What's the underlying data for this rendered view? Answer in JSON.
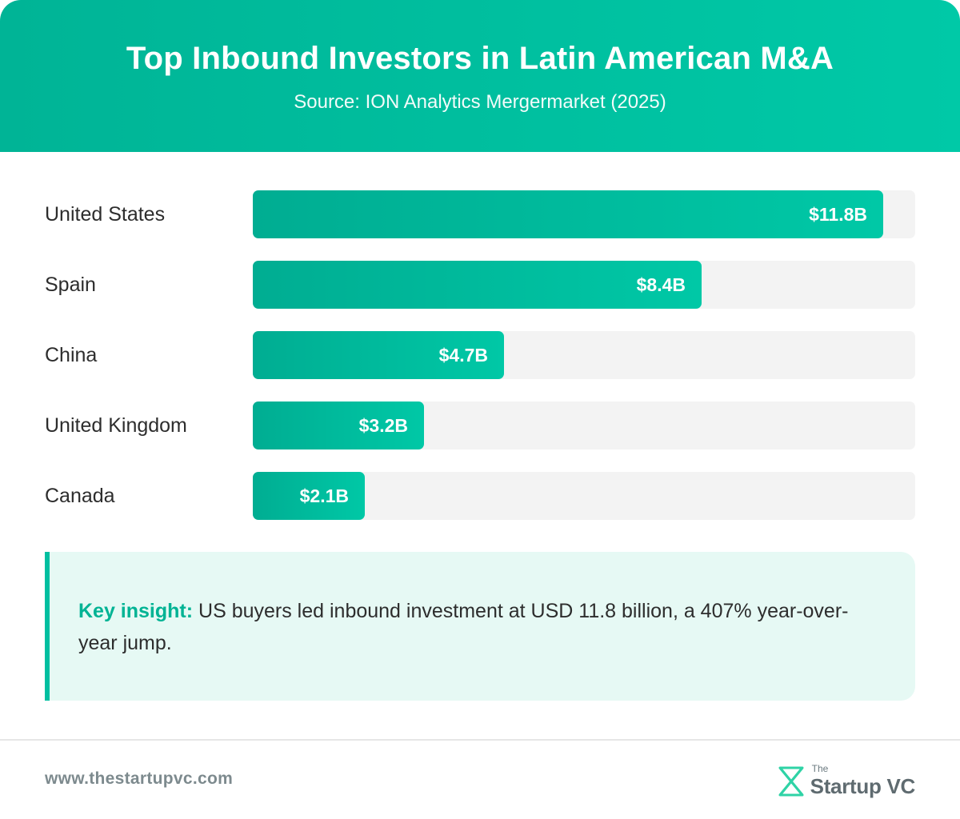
{
  "header": {
    "title": "Top Inbound Investors in Latin American M&A",
    "subtitle": "Source: ION Analytics Mergermarket (2025)"
  },
  "chart_data": {
    "type": "bar",
    "orientation": "horizontal",
    "title": "Top Inbound Investors in Latin American M&A",
    "subtitle": "Source: ION Analytics Mergermarket (2025)",
    "categories": [
      "United States",
      "Spain",
      "China",
      "United Kingdom",
      "Canada"
    ],
    "values": [
      11.8,
      8.4,
      4.7,
      3.2,
      2.1
    ],
    "value_labels": [
      "$11.8B",
      "$8.4B",
      "$4.7B",
      "$3.2B",
      "$2.1B"
    ],
    "unit": "USD billions",
    "xlim": [
      0,
      12.4
    ],
    "grid": false,
    "bar_color": "#00bfa0",
    "track_color": "#f3f3f3"
  },
  "insight": {
    "label": "Key insight:",
    "text": " US buyers led inbound investment at USD 11.8 billion, a 407% year-over-year jump."
  },
  "footer": {
    "url": "www.thestartupvc.com",
    "logo_small": "The",
    "logo_name": "Startup VC",
    "logo_icon": "startupvc-logo-icon"
  },
  "colors": {
    "accent": "#00c4a3",
    "accent_dark": "#00ad92",
    "insight_bg": "#e6f9f4",
    "footer_text": "#7d8a8e"
  }
}
